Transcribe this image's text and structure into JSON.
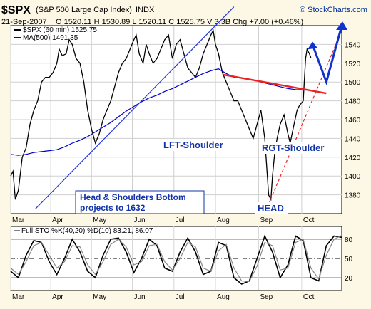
{
  "header": {
    "symbol": "$SPX",
    "name": "(S&P 500 Large Cap Index)",
    "exchange": "INDX",
    "date": "21-Sep-2007",
    "ohlc": "O 1520.11  H 1530.89  L 1520.11  C 1525.75  V 3.3B  Chg +7.00 (+0.46%)",
    "brand": "© StockCharts.com"
  },
  "chart_data": [
    {
      "type": "line",
      "title": "$SPX (60 min) 1525.75",
      "series": [
        {
          "name": "$SPX (60 min) 1525.75",
          "color": "#000000",
          "values": [
            [
              0,
              1400
            ],
            [
              0.03,
              1405
            ],
            [
              0.06,
              1375
            ],
            [
              0.1,
              1385
            ],
            [
              0.15,
              1420
            ],
            [
              0.2,
              1430
            ],
            [
              0.25,
              1455
            ],
            [
              0.3,
              1470
            ],
            [
              0.35,
              1480
            ],
            [
              0.4,
              1500
            ],
            [
              0.45,
              1505
            ],
            [
              0.5,
              1505
            ],
            [
              0.55,
              1510
            ],
            [
              0.6,
              1520
            ],
            [
              0.63,
              1535
            ],
            [
              0.67,
              1528
            ],
            [
              0.72,
              1530
            ],
            [
              0.76,
              1545
            ],
            [
              0.8,
              1540
            ],
            [
              0.85,
              1525
            ],
            [
              0.9,
              1520
            ],
            [
              0.95,
              1500
            ],
            [
              1.0,
              1470
            ],
            [
              1.05,
              1450
            ],
            [
              1.1,
              1435
            ],
            [
              1.15,
              1445
            ],
            [
              1.2,
              1460
            ],
            [
              1.25,
              1470
            ],
            [
              1.3,
              1480
            ],
            [
              1.35,
              1495
            ],
            [
              1.4,
              1510
            ],
            [
              1.45,
              1520
            ],
            [
              1.5,
              1525
            ],
            [
              1.55,
              1535
            ],
            [
              1.6,
              1545
            ],
            [
              1.63,
              1550
            ],
            [
              1.67,
              1530
            ],
            [
              1.72,
              1520
            ],
            [
              1.76,
              1540
            ],
            [
              1.8,
              1530
            ],
            [
              1.85,
              1520
            ],
            [
              1.9,
              1525
            ],
            [
              1.95,
              1535
            ],
            [
              2.0,
              1545
            ],
            [
              2.05,
              1550
            ],
            [
              2.1,
              1525
            ],
            [
              2.15,
              1540
            ],
            [
              2.2,
              1545
            ],
            [
              2.25,
              1530
            ],
            [
              2.3,
              1515
            ],
            [
              2.35,
              1510
            ],
            [
              2.4,
              1505
            ],
            [
              2.45,
              1515
            ],
            [
              2.5,
              1530
            ],
            [
              2.55,
              1540
            ],
            [
              2.6,
              1550
            ],
            [
              2.63,
              1555
            ],
            [
              2.66,
              1540
            ],
            [
              2.7,
              1530
            ],
            [
              2.75,
              1510
            ],
            [
              2.8,
              1500
            ],
            [
              2.85,
              1490
            ],
            [
              2.9,
              1480
            ],
            [
              2.95,
              1480
            ],
            [
              3.0,
              1470
            ],
            [
              3.05,
              1460
            ],
            [
              3.1,
              1450
            ],
            [
              3.15,
              1440
            ],
            [
              3.2,
              1455
            ],
            [
              3.25,
              1470
            ],
            [
              3.3,
              1440
            ],
            [
              3.35,
              1380
            ],
            [
              3.38,
              1375
            ],
            [
              3.4,
              1400
            ],
            [
              3.43,
              1425
            ],
            [
              3.46,
              1440
            ],
            [
              3.5,
              1455
            ],
            [
              3.55,
              1465
            ],
            [
              3.6,
              1445
            ],
            [
              3.63,
              1435
            ],
            [
              3.68,
              1455
            ],
            [
              3.72,
              1470
            ],
            [
              3.75,
              1475
            ],
            [
              3.8,
              1480
            ],
            [
              3.83,
              1525
            ],
            [
              3.85,
              1535
            ],
            [
              3.88,
              1530
            ],
            [
              3.9,
              1526
            ]
          ]
        },
        {
          "name": "MA(500) 1491.35",
          "color": "#0000cc",
          "values": [
            [
              0,
              1423
            ],
            [
              0.1,
              1422
            ],
            [
              0.2,
              1423
            ],
            [
              0.3,
              1425
            ],
            [
              0.4,
              1426
            ],
            [
              0.5,
              1427
            ],
            [
              0.6,
              1428
            ],
            [
              0.7,
              1431
            ],
            [
              0.8,
              1435
            ],
            [
              0.9,
              1438
            ],
            [
              1.0,
              1442
            ],
            [
              1.1,
              1447
            ],
            [
              1.2,
              1452
            ],
            [
              1.3,
              1457
            ],
            [
              1.4,
              1463
            ],
            [
              1.5,
              1469
            ],
            [
              1.6,
              1474
            ],
            [
              1.7,
              1479
            ],
            [
              1.8,
              1483
            ],
            [
              1.9,
              1486
            ],
            [
              2.0,
              1490
            ],
            [
              2.1,
              1493
            ],
            [
              2.2,
              1497
            ],
            [
              2.3,
              1501
            ],
            [
              2.4,
              1505
            ],
            [
              2.5,
              1509
            ],
            [
              2.6,
              1512
            ],
            [
              2.7,
              1514
            ],
            [
              2.8,
              1509
            ],
            [
              2.9,
              1505
            ],
            [
              3.0,
              1504
            ],
            [
              3.1,
              1503
            ],
            [
              3.2,
              1501
            ],
            [
              3.3,
              1499
            ],
            [
              3.4,
              1497
            ],
            [
              3.5,
              1495
            ],
            [
              3.6,
              1493
            ],
            [
              3.7,
              1492
            ],
            [
              3.8,
              1491.5
            ],
            [
              3.9,
              1491.35
            ]
          ]
        }
      ],
      "ylim": [
        1360,
        1560
      ],
      "yticks": [
        1380,
        1400,
        1420,
        1440,
        1460,
        1480,
        1500,
        1520,
        1540
      ],
      "xticks": [
        "Mar",
        "Apr",
        "May",
        "Jun",
        "Jul",
        "Aug",
        "Sep",
        "Oct"
      ],
      "annotations": {
        "lft_shoulder": "LFT-Shoulder",
        "rgt_shoulder": "RGT-Shoulder",
        "head": "HEAD",
        "note_line1": "Head & Shoulders Bottom",
        "note_line2": "projects to 1632"
      },
      "overlays": {
        "uptrend_line": {
          "color": "#2233dd",
          "from": [
            0.32,
            1365
          ],
          "to": [
            2.9,
            1580
          ]
        },
        "neckline": {
          "color": "#ee2222",
          "from": [
            2.75,
            1508
          ],
          "to": [
            4.1,
            1488
          ]
        },
        "dashed_support": {
          "color": "#ee2222",
          "from": [
            3.35,
            1370
          ],
          "to": [
            4.3,
            1555
          ]
        },
        "projection_arrow": {
          "color": "#1133cc",
          "points": [
            [
              3.92,
              1540
            ],
            [
              4.1,
              1500
            ],
            [
              4.3,
              1560
            ]
          ]
        }
      },
      "grid": true,
      "legend_position": "top-left"
    },
    {
      "type": "line",
      "title": "Full STO %K(40,20) %D(10) 83.21, 86.07",
      "ylim": [
        0,
        100
      ],
      "yticks": [
        20,
        50,
        80
      ],
      "hlines": [
        20,
        50,
        80
      ],
      "series": [
        {
          "name": "%K",
          "color": "#000000",
          "values": [
            [
              0,
              30
            ],
            [
              0.1,
              20
            ],
            [
              0.2,
              55
            ],
            [
              0.3,
              78
            ],
            [
              0.4,
              75
            ],
            [
              0.5,
              45
            ],
            [
              0.6,
              25
            ],
            [
              0.7,
              50
            ],
            [
              0.8,
              80
            ],
            [
              0.9,
              60
            ],
            [
              1.0,
              30
            ],
            [
              1.1,
              20
            ],
            [
              1.2,
              55
            ],
            [
              1.3,
              80
            ],
            [
              1.4,
              82
            ],
            [
              1.5,
              60
            ],
            [
              1.6,
              28
            ],
            [
              1.7,
              50
            ],
            [
              1.8,
              80
            ],
            [
              1.9,
              70
            ],
            [
              2.0,
              35
            ],
            [
              2.1,
              30
            ],
            [
              2.2,
              60
            ],
            [
              2.3,
              82
            ],
            [
              2.4,
              60
            ],
            [
              2.5,
              25
            ],
            [
              2.6,
              30
            ],
            [
              2.7,
              75
            ],
            [
              2.8,
              70
            ],
            [
              2.9,
              20
            ],
            [
              3.0,
              10
            ],
            [
              3.1,
              15
            ],
            [
              3.2,
              50
            ],
            [
              3.3,
              85
            ],
            [
              3.4,
              60
            ],
            [
              3.5,
              20
            ],
            [
              3.6,
              40
            ],
            [
              3.7,
              85
            ],
            [
              3.8,
              78
            ],
            [
              3.9,
              20
            ],
            [
              4.0,
              15
            ],
            [
              4.1,
              70
            ],
            [
              4.2,
              85
            ],
            [
              4.3,
              83
            ]
          ]
        },
        {
          "name": "%D",
          "color": "#888888",
          "values": [
            [
              0,
              35
            ],
            [
              0.1,
              25
            ],
            [
              0.2,
              45
            ],
            [
              0.3,
              70
            ],
            [
              0.4,
              75
            ],
            [
              0.5,
              55
            ],
            [
              0.6,
              35
            ],
            [
              0.7,
              45
            ],
            [
              0.8,
              70
            ],
            [
              0.9,
              68
            ],
            [
              1.0,
              40
            ],
            [
              1.1,
              25
            ],
            [
              1.2,
              45
            ],
            [
              1.3,
              72
            ],
            [
              1.4,
              80
            ],
            [
              1.5,
              68
            ],
            [
              1.6,
              40
            ],
            [
              1.7,
              45
            ],
            [
              1.8,
              70
            ],
            [
              1.9,
              72
            ],
            [
              2.0,
              45
            ],
            [
              2.1,
              32
            ],
            [
              2.2,
              50
            ],
            [
              2.3,
              75
            ],
            [
              2.4,
              68
            ],
            [
              2.5,
              35
            ],
            [
              2.6,
              30
            ],
            [
              2.7,
              62
            ],
            [
              2.8,
              72
            ],
            [
              2.9,
              35
            ],
            [
              3.0,
              15
            ],
            [
              3.1,
              14
            ],
            [
              3.2,
              38
            ],
            [
              3.3,
              75
            ],
            [
              3.4,
              70
            ],
            [
              3.5,
              32
            ],
            [
              3.6,
              35
            ],
            [
              3.7,
              75
            ],
            [
              3.8,
              80
            ],
            [
              3.9,
              35
            ],
            [
              4.0,
              18
            ],
            [
              4.1,
              55
            ],
            [
              4.2,
              80
            ],
            [
              4.3,
              86
            ]
          ]
        }
      ],
      "xticks": [
        "Mar",
        "Apr",
        "May",
        "Jun",
        "Jul",
        "Aug",
        "Sep",
        "Oct"
      ]
    }
  ]
}
